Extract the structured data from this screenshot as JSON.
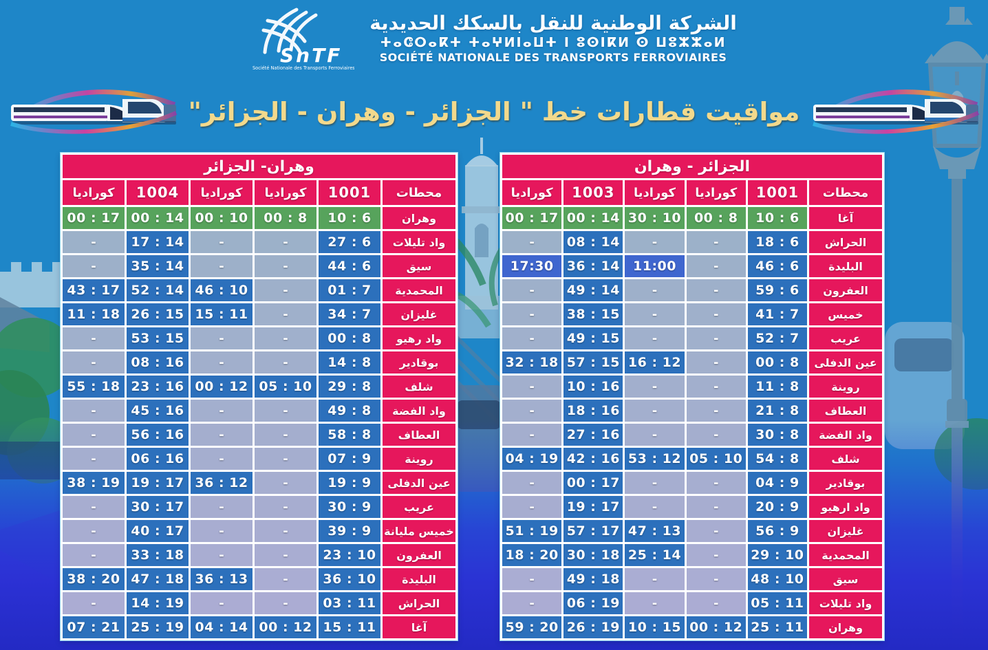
{
  "header": {
    "brand": "SnTF",
    "brand_caption": "Société Nationale des Transports Ferroviaires",
    "company_ar": "الشركة الوطنية للنقل بالسكك الحديدية",
    "company_tifinagh": "ⵜⴰⵛⵔⴰⴽⵜ ⵜⴰⵖⵍⵏⴰⵡⵜ ⵏ ⵓⵙⵏⴽⵍ ⵙ ⵡⵓⵣⵣⴰⵍ",
    "company_fr": "SOCIÉTÉ NATIONALE DES TRANSPORTS FERROVIAIRES"
  },
  "title": "مواقيت قطارات خط \" الجزائر - وهران - الجزائر\"",
  "colors": {
    "header_pink": "#e6175c",
    "departure_green": "#57a35c",
    "time_blue": "#2c70bc",
    "indigo_blue": "#3f66cf",
    "no_service_grey": "#a6adc4",
    "title_yellow": "#f2d98c",
    "sky_blue": "#1e86c8",
    "bottom_blue": "#2b2fd4"
  },
  "tables": [
    {
      "name": "oran-alger",
      "title": "وهران- الجزائر",
      "stations_header": "محطات",
      "train_columns": [
        "1001",
        "كوراديا",
        "كوراديا",
        "1004",
        "كوراديا"
      ],
      "rows": [
        {
          "station": "وهران",
          "departure": true,
          "times": [
            "6 : 10",
            "8 : 00",
            "10 : 00",
            "14 : 00",
            "17 : 00"
          ]
        },
        {
          "station": "واد تليلات",
          "times": [
            "6 : 27",
            "-",
            "-",
            "14 : 17",
            "-"
          ]
        },
        {
          "station": "سيق",
          "times": [
            "6 : 44",
            "-",
            "-",
            "14 : 35",
            "-"
          ]
        },
        {
          "station": "المحمدية",
          "times": [
            "7 : 01",
            "-",
            "10 : 46",
            "14 : 52",
            "17 : 43"
          ]
        },
        {
          "station": "غليزان",
          "times": [
            "7 : 34",
            "-",
            "11 : 15",
            "15 : 26",
            "18 : 11"
          ]
        },
        {
          "station": "واد رهيو",
          "times": [
            "8 : 00",
            "-",
            "-",
            "15 : 53",
            "-"
          ]
        },
        {
          "station": "بوقادير",
          "times": [
            "8 : 14",
            "-",
            "-",
            "16 : 08",
            "-"
          ]
        },
        {
          "station": "شلف",
          "times": [
            "8 : 29",
            "10 : 05",
            "12 : 00",
            "16 : 23",
            "18 : 55"
          ]
        },
        {
          "station": "واد الفضة",
          "times": [
            "8 : 49",
            "-",
            "-",
            "16 : 45",
            "-"
          ]
        },
        {
          "station": "العطاف",
          "times": [
            "8 : 58",
            "-",
            "-",
            "16 : 56",
            "-"
          ]
        },
        {
          "station": "روينة",
          "times": [
            "9 : 07",
            "-",
            "-",
            "16 : 06",
            "-"
          ]
        },
        {
          "station": "عين الدفلى",
          "times": [
            "9 : 19",
            "-",
            "12 : 36",
            "17 : 19",
            "19 : 38"
          ]
        },
        {
          "station": "عريب",
          "times": [
            "9 : 30",
            "-",
            "-",
            "17 : 30",
            "-"
          ]
        },
        {
          "station": "خميس مليانة",
          "times": [
            "9 : 39",
            "-",
            "-",
            "17 : 40",
            "-"
          ]
        },
        {
          "station": "العفرون",
          "times": [
            "10 : 23",
            "-",
            "-",
            "18 : 33",
            "-"
          ]
        },
        {
          "station": "البليدة",
          "times": [
            "10 : 36",
            "-",
            "13 : 36",
            "18 : 47",
            "20 : 38"
          ]
        },
        {
          "station": "الحراش",
          "times": [
            "11 : 03",
            "-",
            "-",
            "19 : 14",
            "-"
          ]
        },
        {
          "station": "آغا",
          "times": [
            "11 : 15",
            "12 : 00",
            "14 : 04",
            "19 : 25",
            "21 : 07"
          ]
        }
      ]
    },
    {
      "name": "alger-oran",
      "title": "الجزائر - وهران",
      "stations_header": "محطات",
      "train_columns": [
        "1001",
        "كوراديا",
        "كوراديا",
        "1003",
        "كوراديا"
      ],
      "indigo_cells": [
        {
          "row": 2,
          "time": 2
        },
        {
          "row": 2,
          "time": 4
        }
      ],
      "rows": [
        {
          "station": "آغا",
          "departure": true,
          "times": [
            "6 : 10",
            "8 : 00",
            "10 : 30",
            "14 : 00",
            "17 : 00"
          ]
        },
        {
          "station": "الحراش",
          "times": [
            "6 : 18",
            "-",
            "-",
            "14 : 08",
            "-"
          ]
        },
        {
          "station": "البليدة",
          "times": [
            "6 : 46",
            "-",
            "11:00",
            "14 : 36",
            "17:30"
          ]
        },
        {
          "station": "العفرون",
          "times": [
            "6 : 59",
            "-",
            "-",
            "14 : 49",
            "-"
          ]
        },
        {
          "station": "خميس",
          "times": [
            "7 : 41",
            "-",
            "-",
            "15 : 38",
            "-"
          ]
        },
        {
          "station": "عريب",
          "times": [
            "7 : 52",
            "-",
            "-",
            "15 : 49",
            "-"
          ]
        },
        {
          "station": "عين الدفلى",
          "times": [
            "8 : 00",
            "-",
            "12 : 16",
            "15 : 57",
            "18 : 32"
          ]
        },
        {
          "station": "روينة",
          "times": [
            "8 : 11",
            "-",
            "-",
            "16 : 10",
            "-"
          ]
        },
        {
          "station": "العطاف",
          "times": [
            "8 : 21",
            "-",
            "-",
            "16 : 18",
            "-"
          ]
        },
        {
          "station": "واد الفضة",
          "times": [
            "8 : 30",
            "-",
            "-",
            "16 : 27",
            "-"
          ]
        },
        {
          "station": "شلف",
          "times": [
            "8 : 54",
            "10 : 05",
            "12 : 53",
            "16 : 42",
            "19 : 04"
          ]
        },
        {
          "station": "بوقادير",
          "times": [
            "9 : 04",
            "-",
            "-",
            "17 : 00",
            "-"
          ]
        },
        {
          "station": "واد ارهيو",
          "times": [
            "9 : 20",
            "-",
            "-",
            "17 : 19",
            "-"
          ]
        },
        {
          "station": "غليزان",
          "times": [
            "9 : 56",
            "-",
            "13 : 47",
            "17 : 57",
            "19 : 51"
          ]
        },
        {
          "station": "المحمدية",
          "times": [
            "10 : 29",
            "-",
            "14 : 25",
            "18 : 30",
            "20 : 18"
          ]
        },
        {
          "station": "سيق",
          "times": [
            "10 : 48",
            "-",
            "-",
            "18 : 49",
            "-"
          ]
        },
        {
          "station": "واد تليلات",
          "times": [
            "11 : 05",
            "-",
            "-",
            "19 : 06",
            "-"
          ]
        },
        {
          "station": "وهران",
          "times": [
            "11 : 25",
            "12 : 00",
            "15 : 10",
            "19 : 26",
            "20 : 59"
          ]
        }
      ]
    }
  ]
}
